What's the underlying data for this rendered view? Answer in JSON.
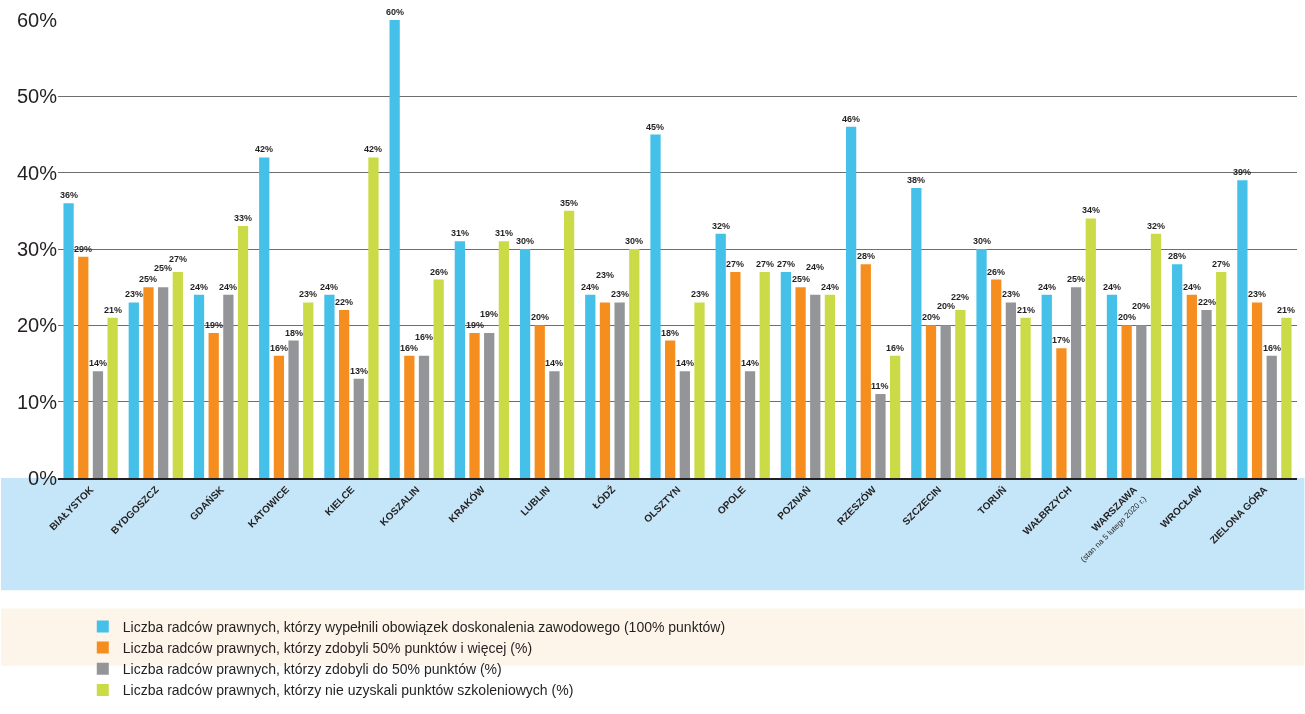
{
  "chart_data": {
    "type": "bar",
    "categories": [
      "BIAŁYSTOK",
      "BYDGOSZCZ",
      "GDAŃSK",
      "KATOWICE",
      "KIELCE",
      "KOSZALIN",
      "KRAKÓW",
      "LUBLIN",
      "ŁÓDŹ",
      "OLSZTYN",
      "OPOLE",
      "POZNAŃ",
      "RZESZÓW",
      "SZCZECIN",
      "TORUŃ",
      "WAŁBRZYCH",
      "WARSZAWA\n(stan na 5 lutego 2020 r.)",
      "WROCŁAW",
      "ZIELONA GÓRA"
    ],
    "series": [
      {
        "name": "Liczba radców prawnych, którzy wypełnili obowiązek doskonalenia zawodowego (100% punktów)",
        "color": "#44c0e9",
        "values": [
          36,
          23,
          24,
          42,
          24,
          60,
          31,
          30,
          24,
          45,
          32,
          27,
          46,
          38,
          30,
          24,
          24,
          28,
          39
        ],
        "value_labels": [
          "36%",
          "23%",
          "24%",
          "42%",
          "24%",
          "60%",
          "31%",
          "30%",
          "24%",
          "45%",
          "32%",
          "27%",
          "46%",
          "38%",
          "30%",
          "24%",
          "24%",
          "28%",
          "39%"
        ]
      },
      {
        "name": "Liczba radców prawnych, którzy zdobyli 50% punktów i więcej (%)",
        "color": "#f68e1f",
        "values": [
          29,
          25,
          19,
          16,
          22,
          16,
          19,
          20,
          23,
          18,
          27,
          25,
          28,
          20,
          26,
          17,
          20,
          24,
          23
        ],
        "value_labels": [
          "29%",
          "25%",
          "19%",
          "16%",
          "22%",
          "16%",
          "19%",
          "20%",
          "23%",
          "18%",
          "27%",
          "25%",
          "28%",
          "20%",
          "26%",
          "17%",
          "20%",
          "24%",
          "23%"
        ]
      },
      {
        "name": "Liczba radców prawnych, którzy zdobyli do 50% punktów (%)",
        "color": "#939598",
        "values": [
          14,
          25,
          24,
          18,
          13,
          16,
          19,
          14,
          23,
          14,
          14,
          24,
          11,
          20,
          23,
          25,
          20,
          22,
          16
        ],
        "value_labels": [
          "14%",
          "25%",
          "24%",
          "18%",
          "13%",
          "16%",
          "19%",
          "14%",
          "23%",
          "14%",
          "14%",
          "24%",
          "11%",
          "20%",
          "23%",
          "25%",
          "20%",
          "22%",
          "16%"
        ]
      },
      {
        "name": "Liczba radców prawnych, którzy nie uzyskali punktów szkoleniowych (%)",
        "color": "#cadb47",
        "values": [
          21,
          27,
          33,
          23,
          42,
          26,
          31,
          35,
          30,
          23,
          27,
          24,
          16,
          22,
          21,
          34,
          32,
          27,
          21
        ],
        "value_labels": [
          "21%",
          "27%",
          "33%",
          "23%",
          "42%",
          "26%",
          "31%",
          "35%",
          "30%",
          "23%",
          "27%",
          "24%",
          "16%",
          "22%",
          "21%",
          "34%",
          "32%",
          "27%",
          "21%"
        ]
      }
    ],
    "ylim": [
      0,
      60
    ],
    "yticks": [
      {
        "value": 0,
        "label": "0%"
      },
      {
        "value": 10,
        "label": "10%"
      },
      {
        "value": 20,
        "label": "20%"
      },
      {
        "value": 30,
        "label": "30%"
      },
      {
        "value": 40,
        "label": "40%"
      },
      {
        "value": 50,
        "label": "50%"
      },
      {
        "value": 60,
        "label": "60%"
      }
    ],
    "grid": "y",
    "legend": "bottom"
  }
}
